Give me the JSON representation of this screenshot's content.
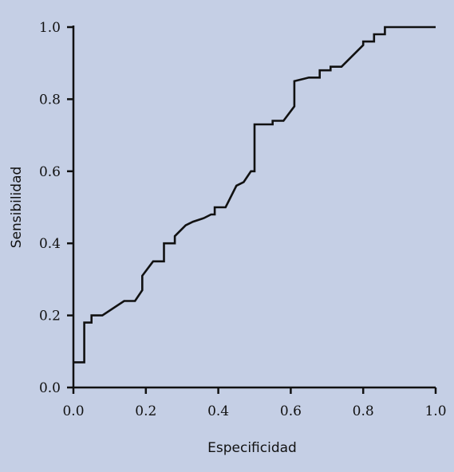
{
  "chart_data": {
    "type": "line",
    "title": "",
    "xlabel": "Especificidad",
    "ylabel": "Sensibilidad",
    "xlim": [
      0.0,
      1.0
    ],
    "ylim": [
      0.0,
      1.0
    ],
    "x_ticks": [
      "0.0",
      "0.2",
      "0.4",
      "0.6",
      "0.8",
      "1.0"
    ],
    "y_ticks": [
      "0.0",
      "0.2",
      "0.4",
      "0.6",
      "0.8",
      "1.0"
    ],
    "grid": false,
    "legend": "none",
    "colors": {
      "background": "#c5cfe5",
      "line": "#111111"
    },
    "series": [
      {
        "x": [
          0.0,
          0.03,
          0.03,
          0.05,
          0.05,
          0.08,
          0.14,
          0.17,
          0.19,
          0.19,
          0.22,
          0.25,
          0.25,
          0.28,
          0.28,
          0.31,
          0.33,
          0.36,
          0.38,
          0.39,
          0.39,
          0.42,
          0.45,
          0.47,
          0.49,
          0.5,
          0.5,
          0.55,
          0.55,
          0.58,
          0.61,
          0.61,
          0.65,
          0.68,
          0.68,
          0.71,
          0.71,
          0.74,
          0.8,
          0.8,
          0.83,
          0.83,
          0.86,
          0.86,
          1.0
        ],
        "y": [
          0.07,
          0.07,
          0.18,
          0.18,
          0.2,
          0.2,
          0.24,
          0.24,
          0.27,
          0.31,
          0.35,
          0.35,
          0.4,
          0.4,
          0.42,
          0.45,
          0.46,
          0.47,
          0.48,
          0.48,
          0.5,
          0.5,
          0.56,
          0.57,
          0.6,
          0.6,
          0.73,
          0.73,
          0.74,
          0.74,
          0.78,
          0.85,
          0.86,
          0.86,
          0.88,
          0.88,
          0.89,
          0.89,
          0.95,
          0.96,
          0.96,
          0.98,
          0.98,
          1.0,
          1.0
        ]
      }
    ]
  }
}
